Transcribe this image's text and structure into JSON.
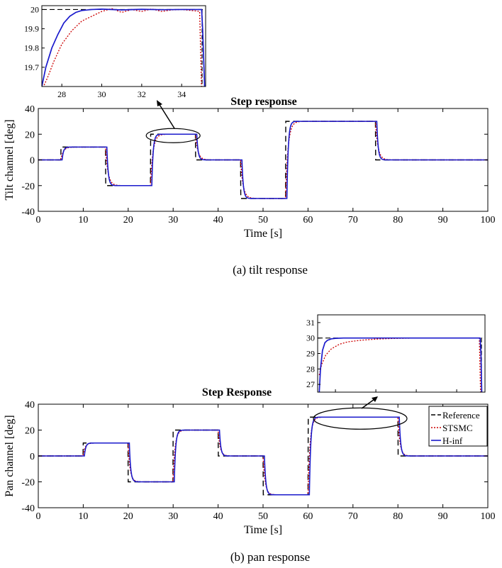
{
  "colors": {
    "reference": "#000000",
    "stsmc": "#cc0000",
    "hinf": "#1a1acc"
  },
  "chart_data": [
    {
      "type": "line",
      "title": "Step response",
      "xlabel": "Time [s]",
      "ylabel": "Tilt channel [deg]",
      "xlim": [
        0,
        100
      ],
      "ylim": [
        -40,
        40
      ],
      "xticks": [
        0,
        10,
        20,
        30,
        40,
        50,
        60,
        70,
        80,
        90,
        100
      ],
      "yticks": [
        -40,
        -20,
        0,
        20,
        40
      ],
      "grid": false,
      "legend": null,
      "reference_steps": [
        [
          0,
          0
        ],
        [
          5,
          10
        ],
        [
          15,
          -20
        ],
        [
          25,
          20
        ],
        [
          35,
          0
        ],
        [
          45,
          -30
        ],
        [
          55,
          30
        ],
        [
          75,
          0
        ],
        [
          100,
          0
        ]
      ],
      "series": [
        {
          "key": "reference",
          "style": "dashed",
          "color": "#000000"
        },
        {
          "key": "stsmc",
          "style": "dotted",
          "color": "#cc0000",
          "tau": 0.55
        },
        {
          "key": "hinf",
          "style": "solid",
          "color": "#1a1acc",
          "tau": 0.3,
          "delay": 0.3
        }
      ],
      "caption": "(a)  tilt  response",
      "inset": {
        "xlim": [
          27,
          35.2
        ],
        "ylim": [
          19.6,
          20.02
        ],
        "xticks": [
          28,
          30,
          32,
          34
        ],
        "yticks": [
          19.7,
          19.8,
          19.9,
          20
        ],
        "reference": 20,
        "stsmc_x": [
          27,
          27.3,
          27.6,
          28,
          28.5,
          29,
          29.5,
          30,
          30.5,
          31,
          31.5,
          32,
          32.5,
          33,
          33.5,
          34,
          34.5,
          34.9,
          35.0
        ],
        "stsmc_y": [
          19.58,
          19.65,
          19.73,
          19.82,
          19.89,
          19.94,
          19.965,
          19.99,
          20.005,
          19.985,
          20.0,
          19.99,
          20.003,
          19.99,
          19.998,
          20.0,
          19.995,
          19.99,
          19.58
        ],
        "hinf_x": [
          27,
          27.2,
          27.5,
          27.8,
          28.1,
          28.4,
          28.7,
          29.0,
          29.5,
          30,
          31,
          32,
          33,
          34,
          35.0,
          35.05,
          35.15
        ],
        "hinf_y": [
          19.6,
          19.7,
          19.8,
          19.87,
          19.93,
          19.965,
          19.985,
          19.995,
          20.0,
          20.002,
          19.998,
          20.001,
          19.999,
          20.0,
          20.0,
          19.9,
          19.6
        ]
      }
    },
    {
      "type": "line",
      "title": "Step Response",
      "xlabel": "Time [s]",
      "ylabel": "Pan channel [deg]",
      "xlim": [
        0,
        100
      ],
      "ylim": [
        -40,
        40
      ],
      "xticks": [
        0,
        10,
        20,
        30,
        40,
        50,
        60,
        70,
        80,
        90,
        100
      ],
      "yticks": [
        -40,
        -20,
        0,
        20,
        40
      ],
      "grid": false,
      "legend": "top-right",
      "reference_steps": [
        [
          0,
          0
        ],
        [
          10,
          10
        ],
        [
          20,
          -20
        ],
        [
          30,
          20
        ],
        [
          40,
          0
        ],
        [
          50,
          -30
        ],
        [
          60,
          30
        ],
        [
          80,
          0
        ],
        [
          100,
          0
        ]
      ],
      "series": [
        {
          "key": "reference",
          "name": "Reference",
          "style": "dashed",
          "color": "#000000"
        },
        {
          "key": "stsmc",
          "name": "STSMC",
          "style": "dotted",
          "color": "#cc0000",
          "tau": 0.45
        },
        {
          "key": "hinf",
          "name": "H-inf",
          "style": "solid",
          "color": "#1a1acc",
          "tau": 0.3,
          "delay": 0.3
        }
      ],
      "caption": "(b)  pan  response",
      "inset": {
        "xlim": [
          59.8,
          80.5
        ],
        "ylim": [
          26.5,
          31.5
        ],
        "yticks": [
          27,
          28,
          29,
          30,
          31
        ],
        "reference": 30,
        "stsmc_x": [
          60.0,
          60.3,
          60.8,
          61.5,
          62.5,
          63.5,
          65,
          67,
          69,
          71,
          75,
          79.8,
          79.95
        ],
        "stsmc_y": [
          27.6,
          28.3,
          28.9,
          29.3,
          29.6,
          29.75,
          29.85,
          29.93,
          29.97,
          29.99,
          30.0,
          30.0,
          26.5
        ],
        "hinf_x": [
          60.0,
          60.15,
          60.4,
          60.7,
          61.0,
          61.5,
          62,
          63,
          70,
          79.9,
          80.0,
          80.1
        ],
        "hinf_y": [
          26.5,
          28.0,
          29.2,
          29.7,
          29.85,
          29.95,
          29.98,
          30.0,
          30.0,
          30.0,
          29.0,
          26.5
        ]
      }
    }
  ],
  "legend_entries": [
    "Reference",
    "STSMC",
    "H-inf"
  ]
}
